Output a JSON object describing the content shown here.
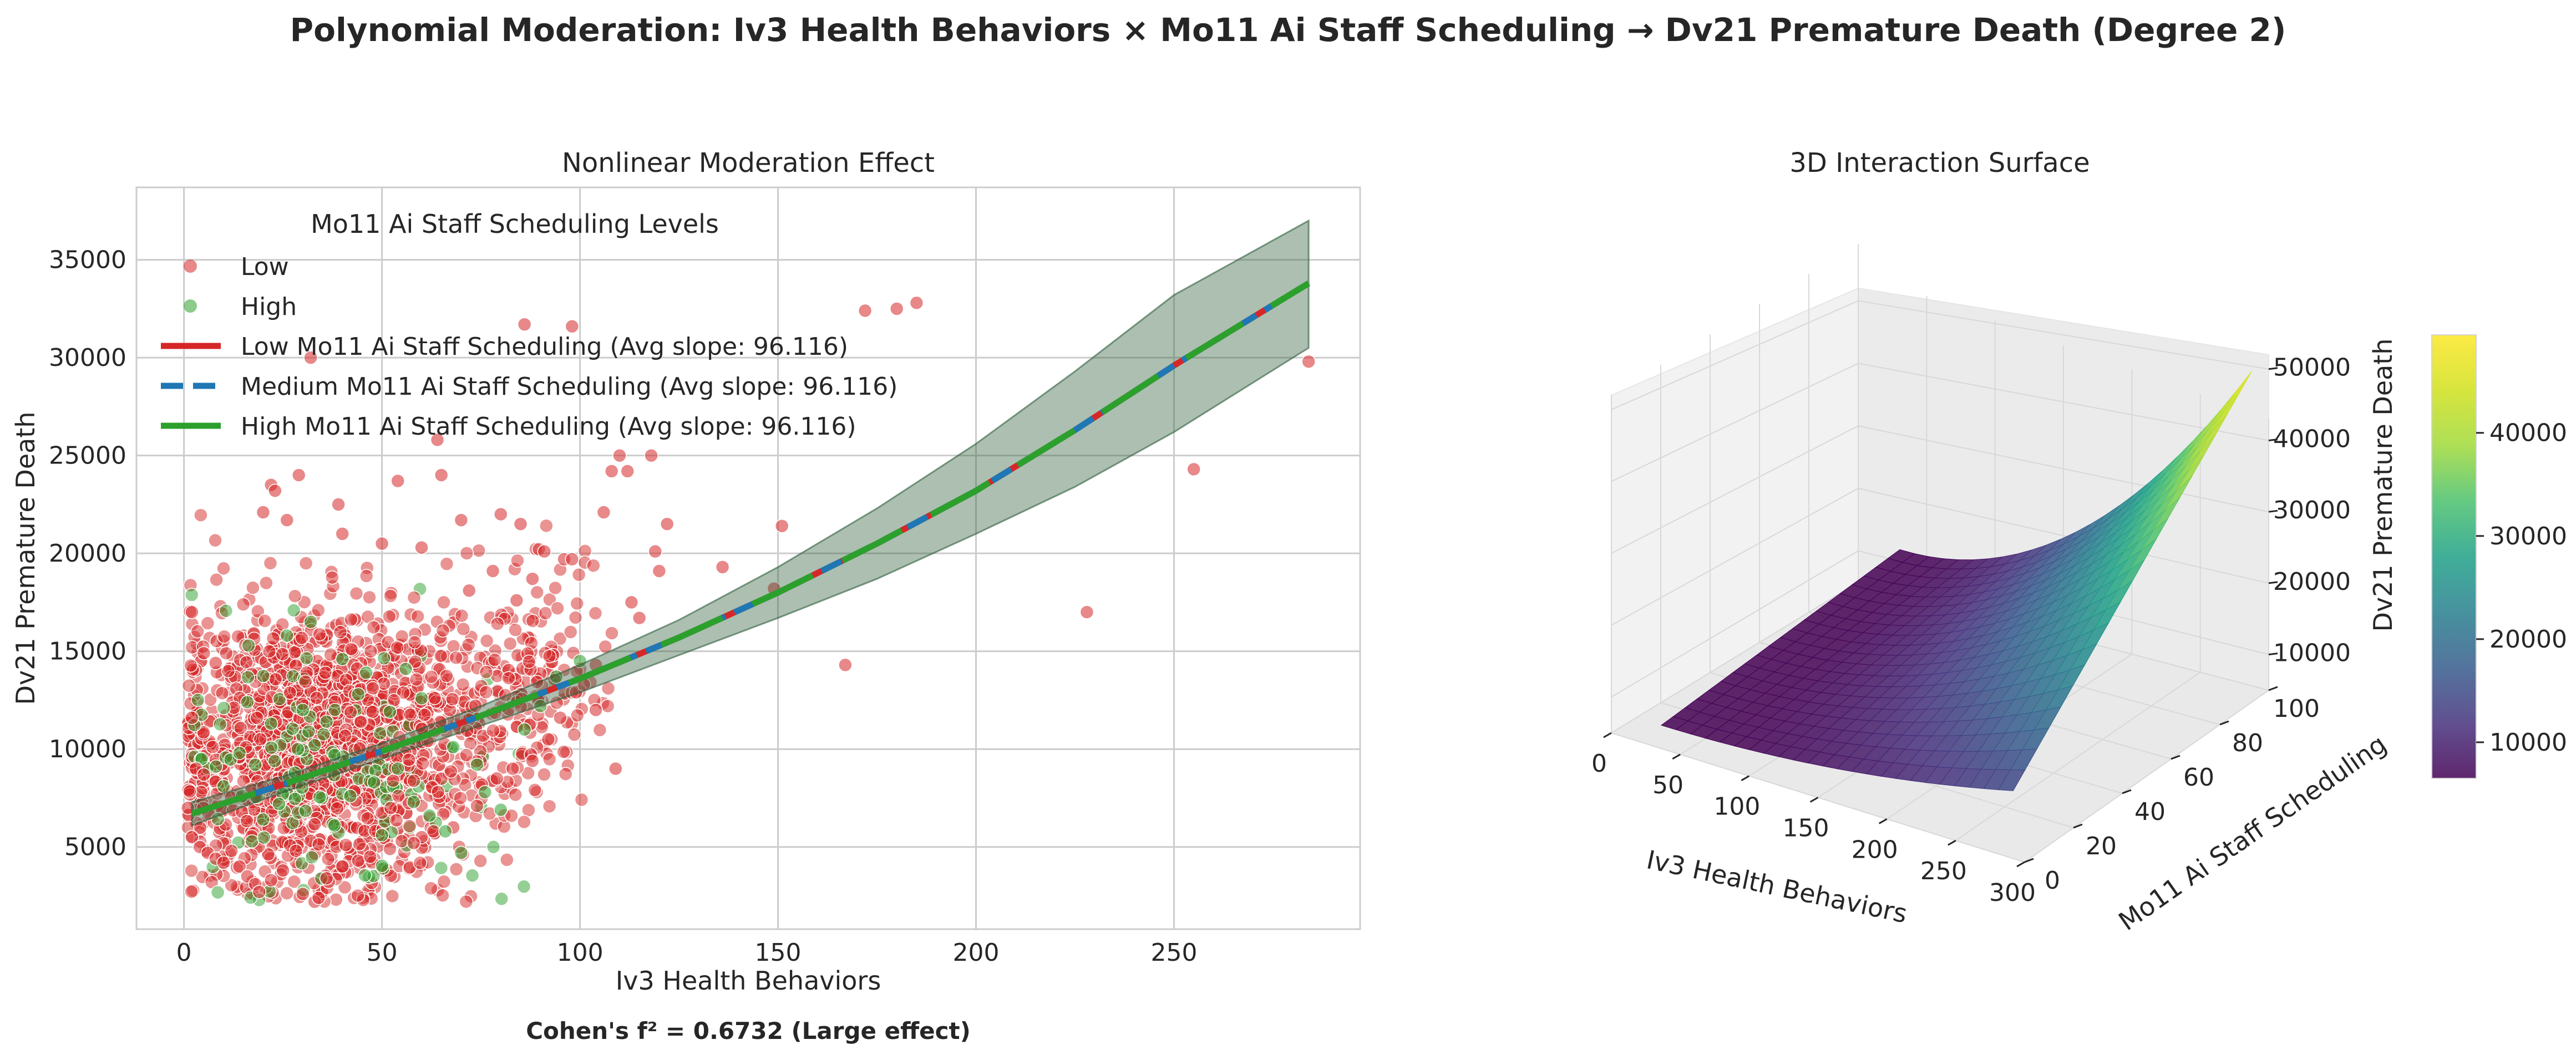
{
  "figure": {
    "suptitle": "Polynomial Moderation: Iv3 Health Behaviors × Mo11 Ai Staff Scheduling → Dv21 Premature Death (Degree 2)",
    "effect_note": "Cohen's f² = 0.6732 (Large effect)"
  },
  "colors": {
    "low": "#d62728",
    "medium": "#1f77b4",
    "high": "#2ca02c",
    "band": "#2f5e3c",
    "grid": "#cccccc"
  },
  "chart_data": [
    {
      "type": "scatter",
      "title": "Nonlinear Moderation Effect",
      "xlabel": "Iv3 Health Behaviors",
      "ylabel": "Dv21 Premature Death",
      "xlim": [
        -12,
        297
      ],
      "ylim": [
        800,
        38700
      ],
      "xticks": [
        0,
        50,
        100,
        150,
        200,
        250
      ],
      "yticks": [
        5000,
        10000,
        15000,
        20000,
        25000,
        30000,
        35000
      ],
      "grid": true,
      "legend": {
        "title": "Mo11 Ai Staff Scheduling Levels",
        "placement": "upper-left",
        "entries": [
          {
            "label": "Low",
            "kind": "point",
            "color": "#d62728"
          },
          {
            "label": "High",
            "kind": "point",
            "color": "#2ca02c"
          },
          {
            "label": "Low Mo11 Ai Staff Scheduling (Avg slope: 96.116)",
            "kind": "line",
            "color": "#d62728"
          },
          {
            "label": "Medium Mo11 Ai Staff Scheduling (Avg slope: 96.116)",
            "kind": "dashed",
            "color": "#1f77b4"
          },
          {
            "label": "High Mo11 Ai Staff Scheduling (Avg slope: 96.116)",
            "kind": "line",
            "color": "#2ca02c"
          }
        ]
      },
      "fit_curve": {
        "x": [
          2,
          25,
          50,
          75,
          100,
          125,
          150,
          175,
          200,
          225,
          250,
          284
        ],
        "y": [
          6700,
          8200,
          9900,
          11700,
          13600,
          15700,
          18000,
          20500,
          23200,
          26300,
          29600,
          33800
        ],
        "ci_lower": [
          6100,
          7800,
          9500,
          11200,
          12900,
          14800,
          16700,
          18700,
          21000,
          23400,
          26200,
          30500
        ],
        "ci_upper": [
          7300,
          8600,
          10300,
          12200,
          14300,
          16600,
          19300,
          22300,
          25600,
          29300,
          33200,
          37000
        ]
      },
      "series": [
        {
          "name": "Low",
          "color": "#d62728",
          "points": [
            [
              86,
              31700
            ],
            [
              98,
              31600
            ],
            [
              172,
              32400
            ],
            [
              180,
              32500
            ],
            [
              185,
              32800
            ],
            [
              284,
              29800
            ],
            [
              255,
              24300
            ],
            [
              228,
              17000
            ],
            [
              167,
              14300
            ],
            [
              151,
              21400
            ],
            [
              136,
              19300
            ],
            [
              149,
              18200
            ],
            [
              110,
              25000
            ],
            [
              112,
              24200
            ],
            [
              118,
              25000
            ],
            [
              108,
              24200
            ],
            [
              106,
              22100
            ],
            [
              119,
              20100
            ],
            [
              120,
              19100
            ],
            [
              122,
              21500
            ],
            [
              113,
              17500
            ],
            [
              115,
              16700
            ],
            [
              109,
              9000
            ],
            [
              104,
              12000
            ],
            [
              104,
              14300
            ],
            [
              32,
              30000
            ],
            [
              29,
              24000
            ],
            [
              64,
              25800
            ],
            [
              65,
              24000
            ],
            [
              54,
              23700
            ],
            [
              70,
              21700
            ],
            [
              80,
              22000
            ],
            [
              39,
              22500
            ],
            [
              22,
              23500
            ],
            [
              23,
              23200
            ],
            [
              20,
              22100
            ],
            [
              26,
              21700
            ],
            [
              40,
              21000
            ],
            [
              50,
              20500
            ],
            [
              60,
              20300
            ],
            [
              85,
              21500
            ],
            [
              91,
              20100
            ],
            [
              96,
              19700
            ],
            [
              98,
              19700
            ],
            [
              88,
              18700
            ],
            [
              84,
              17600
            ],
            [
              78,
              19100
            ],
            [
              72,
              18100
            ],
            [
              2,
              17000
            ],
            [
              5,
              14900
            ],
            [
              8,
              14400
            ],
            [
              2,
              11600
            ],
            [
              3,
              9000
            ],
            [
              5,
              8700
            ],
            [
              1,
              7000
            ],
            [
              2,
              5500
            ],
            [
              4,
              5000
            ],
            [
              6,
              4700
            ],
            [
              8,
              4400
            ],
            [
              10,
              4200
            ],
            [
              12,
              4800
            ],
            [
              14,
              4000
            ],
            [
              16,
              3500
            ],
            [
              18,
              3100
            ],
            [
              19,
              2700
            ],
            [
              22,
              3300
            ],
            [
              25,
              3800
            ],
            [
              30,
              2600
            ],
            [
              33,
              2200
            ],
            [
              34,
              2400
            ],
            [
              36,
              3400
            ],
            [
              40,
              4000
            ],
            [
              44,
              4300
            ],
            [
              47,
              4500
            ],
            [
              52,
              4900
            ],
            [
              55,
              5300
            ],
            [
              60,
              5500
            ],
            [
              63,
              5800
            ],
            [
              68,
              6000
            ],
            [
              74,
              7100
            ],
            [
              79,
              8500
            ],
            [
              83,
              9000
            ],
            [
              88,
              9400
            ],
            [
              92,
              10500
            ],
            [
              95,
              11600
            ],
            [
              99,
              12900
            ],
            [
              101,
              13300
            ],
            [
              58,
              5200
            ]
          ]
        },
        {
          "name": "High",
          "color": "#2ca02c",
          "points": [
            [
              70,
              4700
            ],
            [
              66,
              5800
            ],
            [
              62,
              6600
            ],
            [
              58,
              7300
            ],
            [
              76,
              7800
            ],
            [
              80,
              6900
            ],
            [
              74,
              9200
            ],
            [
              68,
              10100
            ],
            [
              54,
              9000
            ],
            [
              48,
              8300
            ],
            [
              42,
              7600
            ],
            [
              38,
              9700
            ],
            [
              33,
              10200
            ],
            [
              28,
              8800
            ],
            [
              24,
              7200
            ],
            [
              20,
              6400
            ],
            [
              18,
              9200
            ],
            [
              22,
              11300
            ],
            [
              30,
              12000
            ],
            [
              36,
              11400
            ],
            [
              44,
              12800
            ],
            [
              52,
              11900
            ],
            [
              60,
              12600
            ],
            [
              40,
              14600
            ],
            [
              46,
              13900
            ],
            [
              56,
              14100
            ],
            [
              26,
              15800
            ],
            [
              32,
              16500
            ],
            [
              86,
              11000
            ],
            [
              90,
              12200
            ],
            [
              94,
              13700
            ],
            [
              100,
              14500
            ],
            [
              14,
              9800
            ],
            [
              10,
              8100
            ],
            [
              16,
              12400
            ],
            [
              38,
              6100
            ],
            [
              50,
              5600
            ]
          ]
        }
      ],
      "cloud_clusters": [
        {
          "cx": 32,
          "cy": 10000,
          "sx": 18,
          "sy": 3400,
          "n": 1600,
          "color": "#d62728"
        },
        {
          "cx": 38,
          "cy": 8800,
          "sx": 22,
          "sy": 3300,
          "n": 120,
          "color": "#2ca02c"
        },
        {
          "cx": 70,
          "cy": 12300,
          "sx": 17,
          "sy": 3000,
          "n": 300,
          "color": "#d62728"
        },
        {
          "cx": 92,
          "cy": 14200,
          "sx": 7,
          "sy": 2900,
          "n": 60,
          "color": "#d62728"
        }
      ]
    },
    {
      "type": "surface",
      "title": "3D Interaction Surface",
      "xlabel": "Iv3 Health Behaviors",
      "ylabel": "Mo11 Ai Staff Scheduling",
      "zlabel": "Dv21 Premature Death",
      "x_ticks": [
        0,
        50,
        100,
        150,
        200,
        250,
        300
      ],
      "y_ticks": [
        0,
        20,
        40,
        60,
        80,
        100
      ],
      "z_ticks": [
        10000,
        20000,
        30000,
        40000,
        50000
      ],
      "x_range": [
        0,
        284
      ],
      "y_range": [
        0,
        100
      ],
      "z_range": [
        5000,
        52000
      ],
      "colormap": "viridis",
      "colorbar": {
        "ticks": [
          10000,
          20000,
          30000,
          40000
        ],
        "range": [
          6500,
          49500
        ]
      }
    }
  ]
}
